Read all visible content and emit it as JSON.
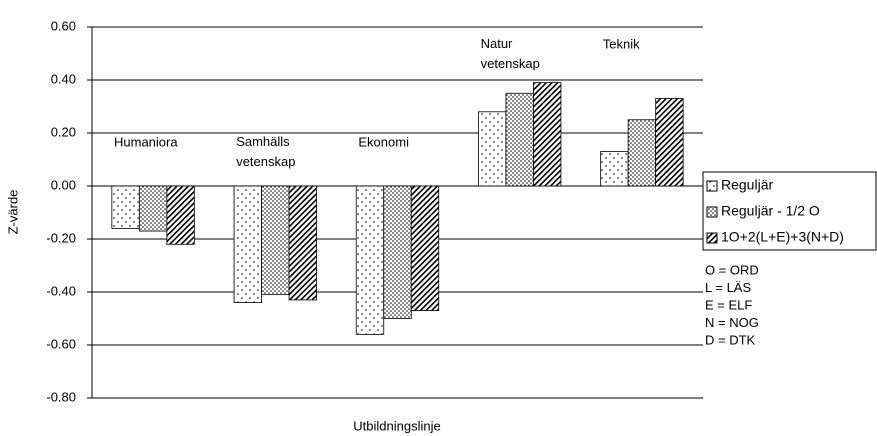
{
  "chart_data": {
    "type": "bar",
    "y_label": "Z-värde",
    "x_label": "Utbildningslinje",
    "categories": [
      "Humaniora",
      "Samhälls\nvetenskap",
      "Ekonomi",
      "Natur\nvetenskap",
      "Teknik"
    ],
    "series": [
      {
        "name": "Reguljär",
        "color": "#000000",
        "pattern": "sparse-dots",
        "values": [
          -0.16,
          -0.44,
          -0.56,
          0.28,
          0.13
        ]
      },
      {
        "name": "Reguljär - 1/2 O",
        "color": "#000000",
        "pattern": "dense-dots",
        "values": [
          -0.17,
          -0.41,
          -0.5,
          0.35,
          0.25
        ]
      },
      {
        "name": "1O+2(L+E)+3(N+D)",
        "color": "#000000",
        "pattern": "hatch",
        "values": [
          -0.22,
          -0.43,
          -0.47,
          0.39,
          0.33
        ]
      }
    ],
    "annotations": [
      "O = ORD",
      "L = LÄS",
      "E = ELF",
      "N = NOG",
      "D = DTK"
    ],
    "ylim": [
      -0.8,
      0.6
    ],
    "yticks": [
      {
        "value": -0.8,
        "label": "-0.80"
      },
      {
        "value": -0.6,
        "label": "-0.60"
      },
      {
        "value": -0.4,
        "label": "-0.40"
      },
      {
        "value": -0.2,
        "label": "-0.20"
      },
      {
        "value": 0,
        "label": "0.00"
      },
      {
        "value": 0.2,
        "label": "0.20"
      },
      {
        "value": 0.4,
        "label": "0.40"
      },
      {
        "value": 0.6,
        "label": "0.60"
      }
    ],
    "grid": true,
    "legend": "right"
  }
}
